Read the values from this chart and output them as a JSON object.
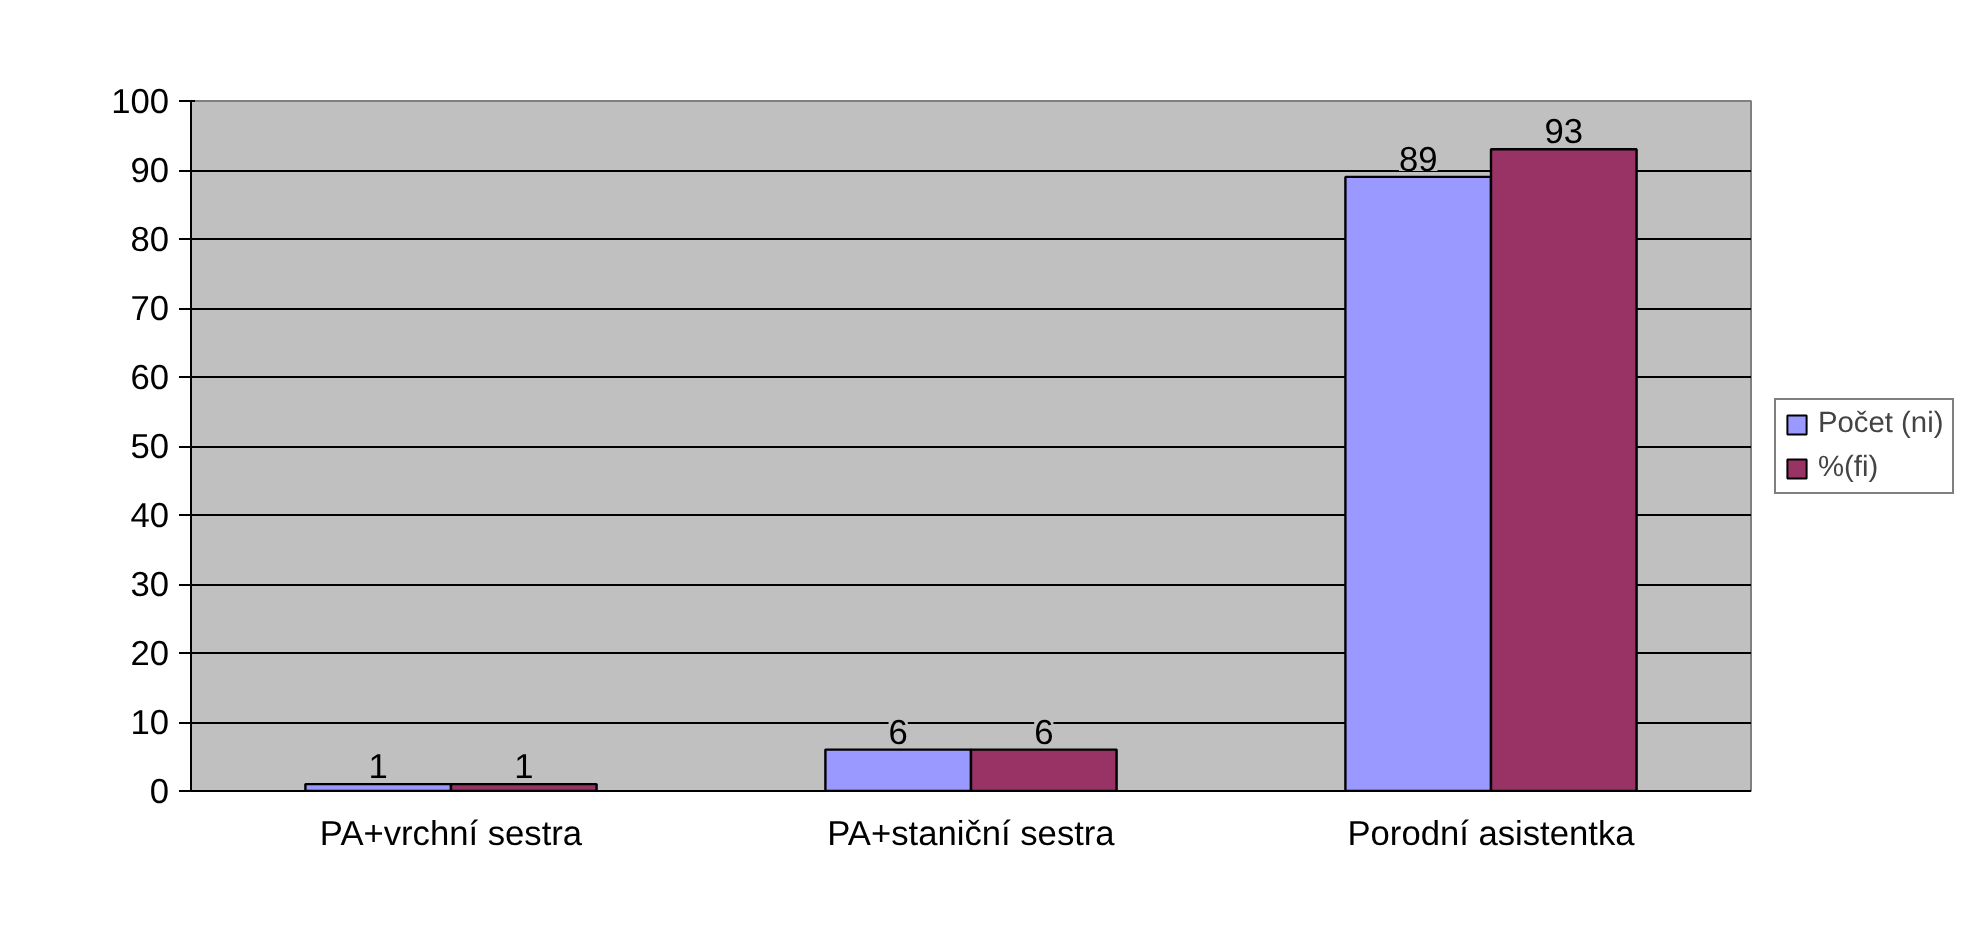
{
  "chart_data": {
    "type": "bar",
    "categories": [
      "PA+vrchní sestra",
      "PA+staniční sestra",
      "Porodní asistentka"
    ],
    "series": [
      {
        "name": "Počet (ni)",
        "color": "#9999ff",
        "values": [
          1,
          6,
          89
        ]
      },
      {
        "name": "%(fi)",
        "color": "#993366",
        "values": [
          1,
          6,
          93
        ]
      }
    ],
    "ylim": [
      0,
      100
    ],
    "yticks": [
      0,
      10,
      20,
      30,
      40,
      50,
      60,
      70,
      80,
      90,
      100
    ],
    "grid": "y",
    "legend": "right",
    "data_labels": true
  }
}
